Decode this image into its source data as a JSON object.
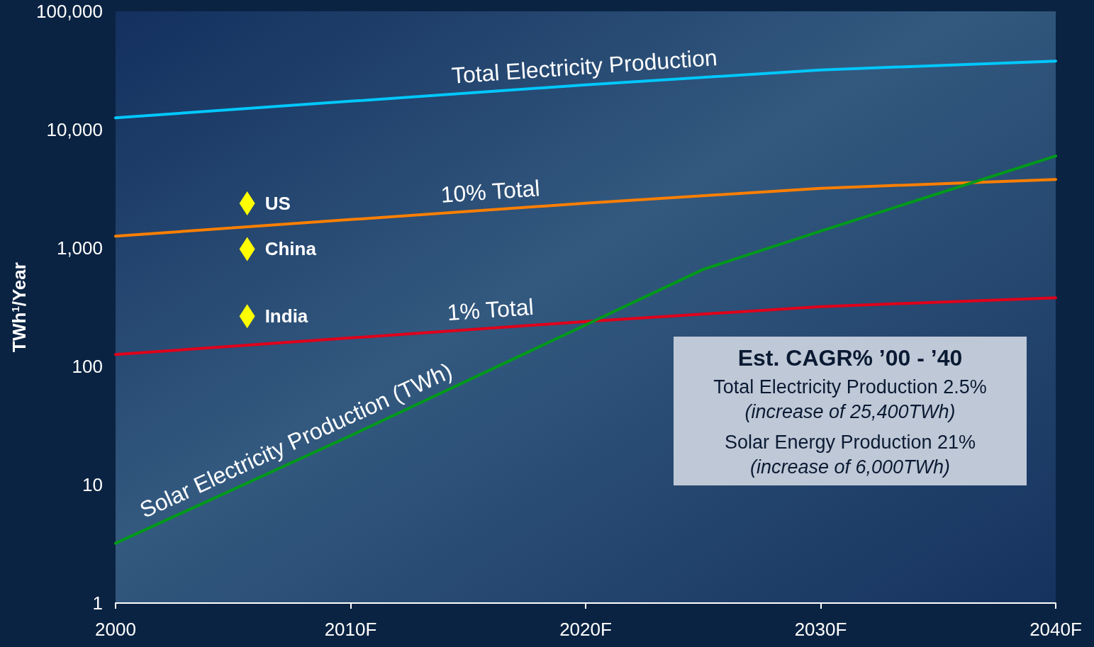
{
  "chart_data": {
    "type": "line",
    "ylabel": "TWh$^{1}$/Year",
    "log": "y",
    "grid": false,
    "legend": false,
    "marker": "none",
    "line_style": "solid",
    "x": [
      2000,
      2010,
      2020,
      2030,
      2040
    ],
    "xlim": [
      2000,
      2040
    ],
    "xticks": [
      2000,
      {
        "value": 2010,
        "label": "2010F"
      },
      {
        "value": 2020,
        "label": "2020F"
      },
      {
        "value": 2030,
        "label": "2030F"
      },
      {
        "value": 2040,
        "label": "2040F"
      }
    ],
    "ylim": [
      1,
      100000
    ],
    "yticks": [
      1,
      10,
      100,
      {
        "value": 1000,
        "label": "1,000"
      },
      {
        "value": 10000,
        "label": "10,000"
      },
      {
        "value": 100000,
        "label": "100,000"
      }
    ],
    "series": [
      {
        "name": "Total Electricity Production",
        "color": "#00c8ff",
        "values": [
          12600,
          17400,
          23900,
          32000,
          38000
        ]
      },
      {
        "name": "10% Total",
        "color": "#ff7f00",
        "values": [
          1260,
          1740,
          2390,
          3200,
          3800
        ]
      },
      {
        "name": "1% Total",
        "color": "#e0001b",
        "values": [
          126,
          174,
          239,
          320,
          380
        ]
      },
      {
        "name": "Solar Electricity Production (TWh)",
        "color": "#009a1a",
        "x": [
          2000,
          2010,
          2020,
          2025,
          2030,
          2040
        ],
        "values": [
          3.2,
          26,
          224,
          660,
          1390,
          6000
        ]
      },
      {
        "name": "US",
        "type": "scatter",
        "marker": "diamond",
        "color": "#ffff00",
        "x": [
          2005.6
        ],
        "values": [
          2380
        ]
      },
      {
        "name": "China",
        "type": "scatter",
        "marker": "diamond",
        "color": "#ffff00",
        "x": [
          2005.6
        ],
        "values": [
          980
        ]
      },
      {
        "name": "India",
        "type": "scatter",
        "marker": "diamond",
        "color": "#ffff00",
        "x": [
          2005.6
        ],
        "values": [
          265
        ]
      }
    ],
    "annotations": [
      "Est. CAGR% ’00 - ’40",
      "Total Electricity Production 2.5%",
      "(increase of 25,400TWh)",
      "Solar Energy Production 21%",
      "(increase of 6,000TWh)"
    ]
  }
}
